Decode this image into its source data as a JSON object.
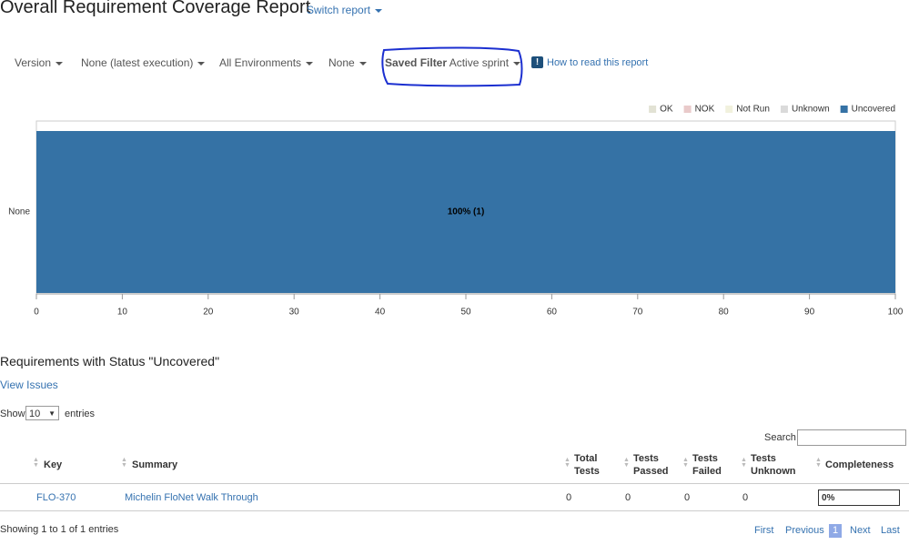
{
  "header": {
    "title": "Overall Requirement Coverage Report",
    "switch_report": "Switch report"
  },
  "filters": {
    "items": [
      "Version",
      "None (latest execution)",
      "All Environments",
      "None"
    ],
    "saved_filter_label": "Saved Filter",
    "saved_filter_value": "Active sprint",
    "help": "How to read this report"
  },
  "chart_data": {
    "type": "stacked-bar-horizontal",
    "categories": [
      "None"
    ],
    "series": [
      {
        "name": "OK",
        "color": "#e2e2d4",
        "values": [
          0
        ]
      },
      {
        "name": "NOK",
        "color": "#e9caca",
        "values": [
          0
        ]
      },
      {
        "name": "Not Run",
        "color": "#f1f1dd",
        "values": [
          0
        ]
      },
      {
        "name": "Unknown",
        "color": "#dadada",
        "values": [
          0
        ]
      },
      {
        "name": "Uncovered",
        "color": "#3572a5",
        "values": [
          100
        ],
        "value_labels": [
          "100% (1)"
        ]
      }
    ],
    "xlim": [
      0,
      100
    ],
    "xticks": [
      0,
      10,
      20,
      30,
      40,
      50,
      60,
      70,
      80,
      90,
      100
    ]
  },
  "section": {
    "title": "Requirements with Status \"Uncovered\"",
    "link": "View Issues"
  },
  "table_controls": {
    "show": "Show",
    "page_size": "10",
    "entries": "entries",
    "search": "Search"
  },
  "table": {
    "columns": [
      "Key",
      "Summary",
      "Total Tests",
      "Tests Passed",
      "Tests Failed",
      "Tests Unknown",
      "Completeness"
    ],
    "rows": [
      [
        "FLO-370",
        "Michelin FloNet Walk Through",
        "0",
        "0",
        "0",
        "0",
        "0%"
      ]
    ]
  },
  "footer": {
    "info": "Showing 1 to 1 of 1 entries",
    "pagination": [
      "First",
      "Previous",
      "1",
      "Next",
      "Last"
    ]
  }
}
